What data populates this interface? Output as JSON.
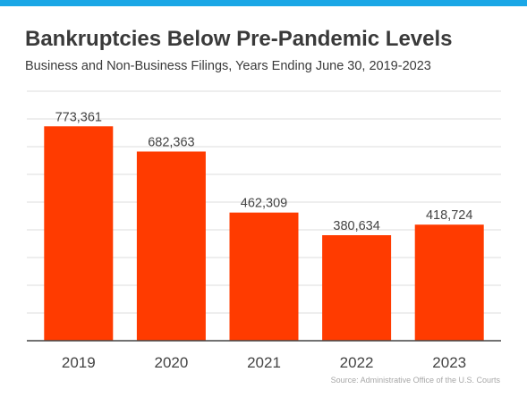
{
  "header": {
    "title": "Bankruptcies Below Pre-Pandemic Levels",
    "subtitle": "Business and Non-Business Filings, Years Ending June 30, 2019-2023"
  },
  "source": "Source: Administrative Office of the U.S. Courts",
  "colors": {
    "bar": "#ff3b00",
    "accent": "#1ba7e6",
    "grid": "#dddddd",
    "axis": "#444444"
  },
  "chart_data": {
    "type": "bar",
    "title": "Bankruptcies Below Pre-Pandemic Levels",
    "subtitle": "Business and Non-Business Filings, Years Ending June 30, 2019-2023",
    "categories": [
      "2019",
      "2020",
      "2021",
      "2022",
      "2023"
    ],
    "values": [
      773361,
      682363,
      462309,
      380634,
      418724
    ],
    "value_labels": [
      "773,361",
      "682,363",
      "462,309",
      "380,634",
      "418,724"
    ],
    "xlabel": "",
    "ylabel": "",
    "ylim": [
      0,
      900000
    ],
    "grid": true,
    "legend": "none"
  }
}
